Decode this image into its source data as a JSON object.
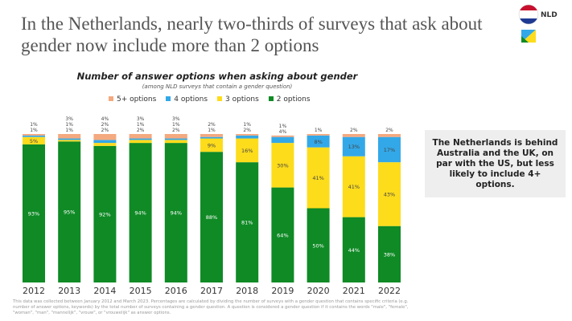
{
  "title": "In the Netherlands, nearly two-thirds of  surveys that ask about gender now include more than 2 options",
  "logo": {
    "label": "NLD"
  },
  "note": "The Netherlands is behind Australia and the UK, on par with the US, but less likely to include 4+ options.",
  "footnote": "This data was collected between January 2012 and March 2023. Percentages are calculated by dividing the number of surveys with a gender question that contains specific criteria (e.g. number of answer options, keywords) by the total number of surveys containing a gender question. A question is considered a gender question if it contains the words \"male\", \"female\", \"woman\", \"man\", \"mannelijk\", \"vrouw\", or \"vrouwelijk\" as answer options.",
  "chart_data": {
    "type": "bar",
    "stacked": true,
    "title": "Number of answer options when asking about gender",
    "subtitle": "(among NLD surveys that contain a gender question)",
    "legend_position": "top",
    "grid": false,
    "categories": [
      "2012",
      "2013",
      "2014",
      "2015",
      "2016",
      "2017",
      "2018",
      "2019",
      "2020",
      "2021",
      "2022"
    ],
    "series": [
      {
        "name": "2 options",
        "color": "#0f8a25",
        "values": [
          93,
          95,
          92,
          94,
          94,
          88,
          81,
          64,
          50,
          44,
          38
        ]
      },
      {
        "name": "3 options",
        "color": "#fddc1c",
        "values": [
          5,
          1,
          2,
          2,
          2,
          9,
          16,
          30,
          41,
          41,
          43
        ]
      },
      {
        "name": "4 options",
        "color": "#33a8e8",
        "values": [
          1,
          1,
          2,
          1,
          1,
          1,
          2,
          4,
          8,
          13,
          17
        ]
      },
      {
        "name": "5+ options",
        "color": "#f4a97f",
        "values": [
          1,
          3,
          4,
          3,
          3,
          2,
          1,
          1,
          1,
          2,
          2
        ]
      }
    ],
    "legend_order": [
      "5+ options",
      "4 options",
      "3 options",
      "2 options"
    ],
    "ylim": [
      0,
      100
    ]
  }
}
